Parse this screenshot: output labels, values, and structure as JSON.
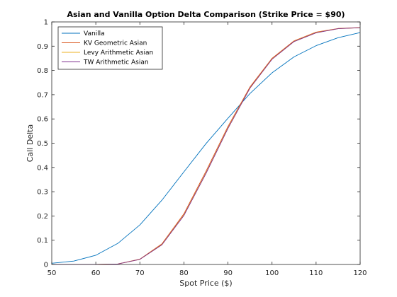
{
  "chart_data": {
    "type": "line",
    "title": "Asian and Vanilla Option Delta Comparison (Strike Price = $90)",
    "xlabel": "Spot Price ($)",
    "ylabel": "Call Delta",
    "xlim": [
      50,
      120
    ],
    "ylim": [
      0,
      1
    ],
    "xticks": [
      50,
      60,
      70,
      80,
      90,
      100,
      110,
      120
    ],
    "yticks": [
      0,
      0.1,
      0.2,
      0.3,
      0.4,
      0.5,
      0.6,
      0.7,
      0.8,
      0.9,
      1
    ],
    "grid": false,
    "legend_position": "top-left",
    "x": [
      50,
      55,
      60,
      65,
      70,
      75,
      80,
      85,
      90,
      95,
      100,
      105,
      110,
      115,
      120
    ],
    "series": [
      {
        "name": "Vanilla",
        "color": "#0072BD",
        "values": [
          0.005,
          0.014,
          0.038,
          0.087,
          0.163,
          0.265,
          0.382,
          0.498,
          0.603,
          0.705,
          0.79,
          0.856,
          0.902,
          0.935,
          0.956
        ]
      },
      {
        "name": "KV Geometric Asian",
        "color": "#D95319",
        "values": [
          0,
          0,
          0,
          0.002,
          0.022,
          0.085,
          0.209,
          0.384,
          0.569,
          0.732,
          0.85,
          0.922,
          0.958,
          0.973,
          0.977
        ]
      },
      {
        "name": "Levy Arithmetic Asian",
        "color": "#EDB120",
        "values": [
          0,
          0,
          0,
          0.002,
          0.021,
          0.082,
          0.204,
          0.377,
          0.563,
          0.728,
          0.847,
          0.92,
          0.956,
          0.972,
          0.976
        ]
      },
      {
        "name": "TW Arithmetic Asian",
        "color": "#7E2F8E",
        "values": [
          0,
          0,
          0,
          0.002,
          0.021,
          0.081,
          0.202,
          0.375,
          0.561,
          0.727,
          0.846,
          0.919,
          0.955,
          0.972,
          0.976
        ]
      }
    ]
  }
}
